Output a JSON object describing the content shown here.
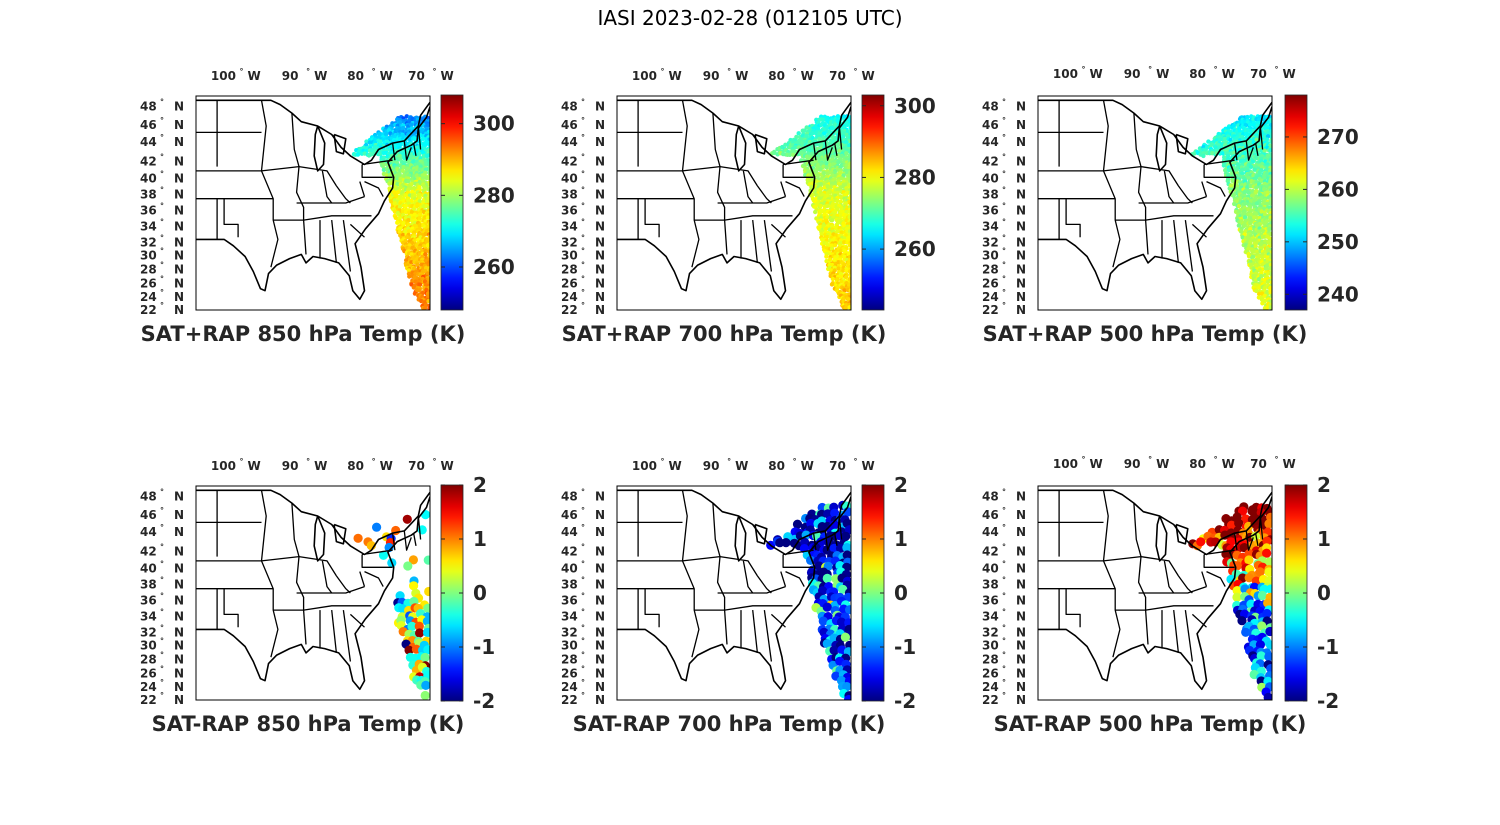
{
  "figure": {
    "title": "IASI 2023-02-28 (012105 UTC)"
  },
  "colors": {
    "map_lines": "#000000",
    "text": "#262626",
    "frame": "#000000"
  },
  "chart_data": [
    {
      "type": "scatter",
      "title": "SAT+RAP 850 hPa Temp (K)",
      "lon_ticks": [
        "100",
        "90",
        "80",
        "70"
      ],
      "lon_suffix": "W",
      "lat_ticks": [
        "48",
        "46",
        "44",
        "42",
        "40",
        "38",
        "36",
        "34",
        "32",
        "30",
        "28",
        "26",
        "24",
        "22"
      ],
      "lat_suffix": "N",
      "extent": {
        "lon": [
          -106,
          -66
        ],
        "lat": [
          22,
          50
        ]
      },
      "clim": [
        248,
        308
      ],
      "colorbar_ticks": [
        260,
        280,
        300
      ],
      "field": {
        "south": 294,
        "mid": 284,
        "north": 263,
        "noise": 2.5,
        "dot": "small"
      }
    },
    {
      "type": "scatter",
      "title": "SAT+RAP 700 hPa Temp (K)",
      "lon_ticks": [
        "100",
        "90",
        "80",
        "70"
      ],
      "lon_suffix": "W",
      "lat_ticks": [
        "48",
        "46",
        "44",
        "42",
        "40",
        "38",
        "36",
        "34",
        "32",
        "30",
        "28",
        "26",
        "24",
        "22"
      ],
      "lat_suffix": "N",
      "extent": {
        "lon": [
          -106,
          -66
        ],
        "lat": [
          22,
          50
        ]
      },
      "clim": [
        243,
        303
      ],
      "colorbar_ticks": [
        260,
        280,
        300
      ],
      "field": {
        "south": 284,
        "mid": 278,
        "north": 266,
        "noise": 2.0,
        "dot": "small"
      }
    },
    {
      "type": "scatter",
      "title": "SAT+RAP 500 hPa Temp (K)",
      "lon_ticks": [
        "100",
        "90",
        "80",
        "70"
      ],
      "lon_suffix": "W",
      "lat_ticks": [
        "48",
        "46",
        "44",
        "42",
        "40",
        "38",
        "36",
        "34",
        "32",
        "30",
        "28",
        "26",
        "24",
        "22"
      ],
      "lat_suffix": "N",
      "extent": {
        "lon": [
          -106,
          -66
        ],
        "lat": [
          22,
          50
        ]
      },
      "clim": [
        237,
        278
      ],
      "colorbar_ticks": [
        240,
        250,
        260,
        270
      ],
      "field": {
        "south": 262,
        "mid": 258,
        "north": 252,
        "noise": 1.8,
        "dot": "small"
      }
    },
    {
      "type": "scatter",
      "title": "SAT-RAP 850 hPa Temp (K)",
      "lon_ticks": [
        "100",
        "90",
        "80",
        "70"
      ],
      "lon_suffix": "W",
      "lat_ticks": [
        "48",
        "46",
        "44",
        "42",
        "40",
        "38",
        "36",
        "34",
        "32",
        "30",
        "28",
        "26",
        "24",
        "22"
      ],
      "lat_suffix": "N",
      "extent": {
        "lon": [
          -106,
          -66
        ],
        "lat": [
          22,
          50
        ]
      },
      "clim": [
        -2,
        2
      ],
      "colorbar_ticks": [
        -2,
        -1,
        0,
        1,
        2
      ],
      "field": {
        "mean": 0.2,
        "spread": 1.3,
        "dot": "large",
        "sparse": true
      }
    },
    {
      "type": "scatter",
      "title": "SAT-RAP 700 hPa Temp (K)",
      "lon_ticks": [
        "100",
        "90",
        "80",
        "70"
      ],
      "lon_suffix": "W",
      "lat_ticks": [
        "48",
        "46",
        "44",
        "42",
        "40",
        "38",
        "36",
        "34",
        "32",
        "30",
        "28",
        "26",
        "24",
        "22"
      ],
      "lat_suffix": "N",
      "extent": {
        "lon": [
          -106,
          -66
        ],
        "lat": [
          22,
          50
        ]
      },
      "clim": [
        -2,
        2
      ],
      "colorbar_ticks": [
        -2,
        -1,
        0,
        1,
        2
      ],
      "field": {
        "mean": -1.2,
        "spread": 1.1,
        "dot": "large",
        "sparse": false
      }
    },
    {
      "type": "scatter",
      "title": "SAT-RAP 500 hPa Temp (K)",
      "lon_ticks": [
        "100",
        "90",
        "80",
        "70"
      ],
      "lon_suffix": "W",
      "lat_ticks": [
        "48",
        "46",
        "44",
        "42",
        "40",
        "38",
        "36",
        "34",
        "32",
        "30",
        "28",
        "26",
        "24",
        "22"
      ],
      "lat_suffix": "N",
      "extent": {
        "lon": [
          -106,
          -66
        ],
        "lat": [
          22,
          50
        ]
      },
      "clim": [
        -2,
        2
      ],
      "colorbar_ticks": [
        -2,
        -1,
        0,
        1,
        2
      ],
      "field": {
        "mean": -1.0,
        "spread": 1.0,
        "north_bias": 2.6,
        "dot": "large",
        "sparse": false
      }
    }
  ]
}
